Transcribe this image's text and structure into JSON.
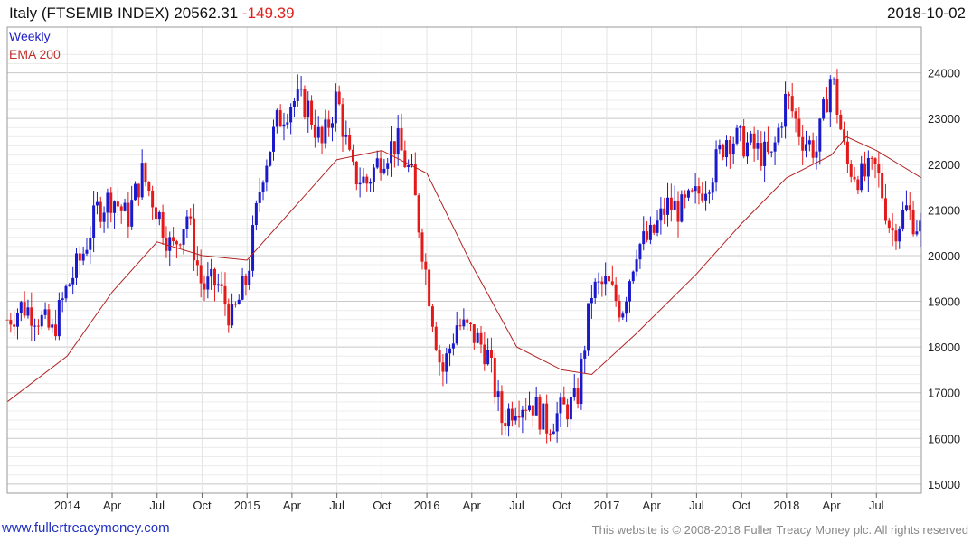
{
  "header": {
    "title": "Italy (FTSEMIB INDEX) 20562.31",
    "change": "-149.39",
    "date": "2018-10-02"
  },
  "legend": {
    "weekly": "Weekly",
    "ema": "EMA 200"
  },
  "footer": {
    "url": "www.fullertreacymoney.com",
    "copyright": "This website is © 2008-2018 Fuller Treacy Money plc. All rights reserved"
  },
  "colors": {
    "up": "#1a1acc",
    "down": "#e41a1a",
    "ema": "#b22222",
    "grid": "#d4d4d4"
  },
  "chart_data": {
    "type": "candlestick",
    "frequency": "Weekly",
    "x_ticks": [
      "2014",
      "Apr",
      "Jul",
      "Oct",
      "2015",
      "Apr",
      "Jul",
      "Oct",
      "2016",
      "Apr",
      "Jul",
      "Oct",
      "2017",
      "Apr",
      "Jul",
      "Oct",
      "2018",
      "Apr",
      "Jul"
    ],
    "x_tick_dates": [
      "2014-01",
      "2014-04",
      "2014-07",
      "2014-10",
      "2015-01",
      "2015-04",
      "2015-07",
      "2015-10",
      "2016-01",
      "2016-04",
      "2016-07",
      "2016-10",
      "2017-01",
      "2017-04",
      "2017-07",
      "2017-10",
      "2018-01",
      "2018-04",
      "2018-07"
    ],
    "x_range": [
      "2013-09",
      "2018-10"
    ],
    "y_ticks": [
      15000,
      16000,
      17000,
      18000,
      19000,
      20000,
      21000,
      22000,
      23000,
      24000
    ],
    "y_tick_labels": [
      "15000",
      "16000",
      "17000",
      "18000",
      "19000",
      "20000",
      "21000",
      "22000",
      "23000",
      "24000"
    ],
    "ylim": [
      14800,
      25000
    ],
    "grid": true,
    "y_axis_position": "right",
    "legend_position": "top-left",
    "series": [
      {
        "name": "Weekly",
        "kind": "close",
        "points": [
          [
            "2013-09",
            18600
          ],
          [
            "2013-10",
            18900
          ],
          [
            "2013-11",
            18700
          ],
          [
            "2013-12",
            18300
          ],
          [
            "2014-01",
            19300
          ],
          [
            "2014-02",
            20000
          ],
          [
            "2014-03",
            21000
          ],
          [
            "2014-04",
            21300
          ],
          [
            "2014-05",
            20800
          ],
          [
            "2014-06",
            21800
          ],
          [
            "2014-07",
            21000
          ],
          [
            "2014-08",
            20100
          ],
          [
            "2014-09",
            20900
          ],
          [
            "2014-10",
            19300
          ],
          [
            "2014-11",
            19400
          ],
          [
            "2014-12",
            18600
          ],
          [
            "2015-01",
            19500
          ],
          [
            "2015-02",
            21800
          ],
          [
            "2015-03",
            22900
          ],
          [
            "2015-04",
            23400
          ],
          [
            "2015-05",
            23300
          ],
          [
            "2015-06",
            22400
          ],
          [
            "2015-07",
            23500
          ],
          [
            "2015-08",
            21800
          ],
          [
            "2015-09",
            21600
          ],
          [
            "2015-10",
            22200
          ],
          [
            "2015-11",
            22500
          ],
          [
            "2015-12",
            21700
          ],
          [
            "2016-01",
            19500
          ],
          [
            "2016-02",
            17400
          ],
          [
            "2016-03",
            18500
          ],
          [
            "2016-04",
            18300
          ],
          [
            "2016-05",
            17900
          ],
          [
            "2016-06",
            16400
          ],
          [
            "2016-07",
            16800
          ],
          [
            "2016-08",
            16800
          ],
          [
            "2016-09",
            16300
          ],
          [
            "2016-10",
            16600
          ],
          [
            "2016-11",
            16800
          ],
          [
            "2016-12",
            19200
          ],
          [
            "2017-01",
            19400
          ],
          [
            "2017-02",
            18800
          ],
          [
            "2017-03",
            20200
          ],
          [
            "2017-04",
            20400
          ],
          [
            "2017-05",
            21100
          ],
          [
            "2017-06",
            21000
          ],
          [
            "2017-07",
            21300
          ],
          [
            "2017-08",
            21800
          ],
          [
            "2017-09",
            22600
          ],
          [
            "2017-10",
            22500
          ],
          [
            "2017-11",
            22300
          ],
          [
            "2017-12",
            22100
          ],
          [
            "2018-01",
            23500
          ],
          [
            "2018-02",
            22600
          ],
          [
            "2018-03",
            22300
          ],
          [
            "2018-04",
            24000
          ],
          [
            "2018-05",
            22000
          ],
          [
            "2018-06",
            21700
          ],
          [
            "2018-07",
            21900
          ],
          [
            "2018-08",
            20500
          ],
          [
            "2018-09",
            21000
          ],
          [
            "2018-10",
            20562
          ]
        ]
      },
      {
        "name": "EMA 200",
        "kind": "line",
        "points": [
          [
            "2013-09",
            16800
          ],
          [
            "2014-01",
            17800
          ],
          [
            "2014-04",
            19200
          ],
          [
            "2014-07",
            20300
          ],
          [
            "2014-10",
            20000
          ],
          [
            "2015-01",
            19900
          ],
          [
            "2015-04",
            21000
          ],
          [
            "2015-07",
            22100
          ],
          [
            "2015-10",
            22300
          ],
          [
            "2016-01",
            21800
          ],
          [
            "2016-04",
            19800
          ],
          [
            "2016-07",
            18000
          ],
          [
            "2016-10",
            17500
          ],
          [
            "2016-12",
            17400
          ],
          [
            "2017-03",
            18300
          ],
          [
            "2017-07",
            19600
          ],
          [
            "2017-10",
            20700
          ],
          [
            "2018-01",
            21700
          ],
          [
            "2018-04",
            22200
          ],
          [
            "2018-05",
            22600
          ],
          [
            "2018-07",
            22300
          ],
          [
            "2018-10",
            21700
          ]
        ]
      }
    ]
  }
}
